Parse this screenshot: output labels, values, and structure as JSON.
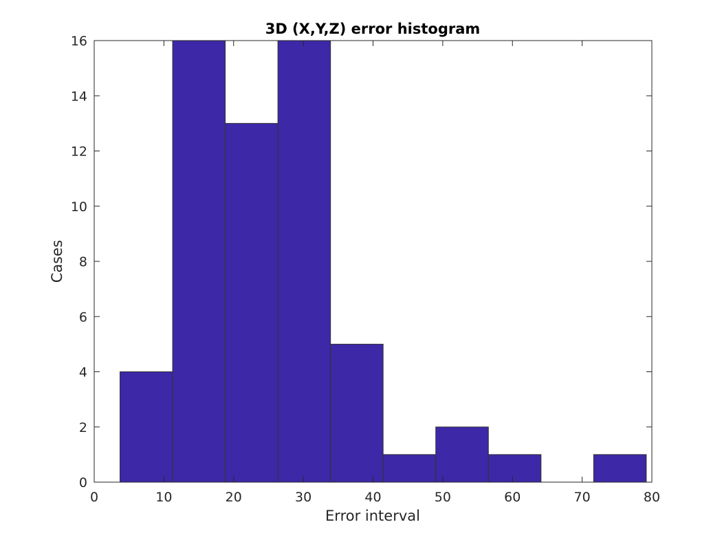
{
  "chart_data": {
    "type": "bar",
    "title": "3D (X,Y,Z) error histogram",
    "xlabel": "Error interval",
    "ylabel": "Cases",
    "xlim": [
      0,
      80
    ],
    "ylim": [
      0,
      16
    ],
    "xticks": [
      "0",
      "10",
      "20",
      "30",
      "40",
      "50",
      "60",
      "70",
      "80"
    ],
    "yticks": [
      "0",
      "2",
      "4",
      "6",
      "8",
      "10",
      "12",
      "14",
      "16"
    ],
    "bin_edges": [
      3.7,
      11.25,
      18.8,
      26.35,
      33.9,
      41.45,
      49.0,
      56.55,
      64.1,
      71.65,
      79.2
    ],
    "values": [
      4,
      16,
      13,
      16,
      5,
      1,
      2,
      1,
      0,
      1
    ],
    "bar_color": "#3d28a7",
    "edge_color": "#333333",
    "grid": false
  }
}
